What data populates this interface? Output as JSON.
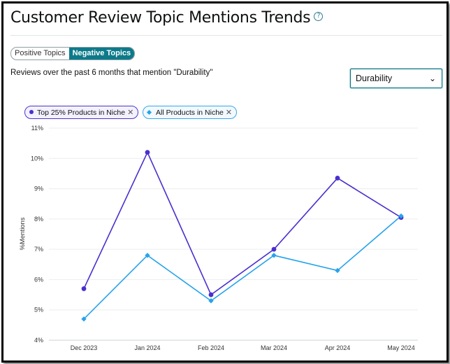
{
  "header": {
    "title": "Customer Review Topic Mentions Trends",
    "help_icon": "?"
  },
  "toggle": {
    "options": [
      "Positive Topics",
      "Negative Topics"
    ],
    "selected": "Negative Topics"
  },
  "subtitle": "Reviews over the past 6 months that mention \"Durability\"",
  "topic_select": {
    "value": "Durability",
    "chevron": "⌄"
  },
  "legend": [
    {
      "label": "Top 25% Products in Niche",
      "color": "#4a2fd0"
    },
    {
      "label": "All Products in Niche",
      "color": "#27a3ec"
    }
  ],
  "chart_data": {
    "type": "line",
    "categories": [
      "Dec 2023",
      "Jan 2024",
      "Feb 2024",
      "Mar 2024",
      "Apr 2024",
      "May 2024"
    ],
    "ylabel": "%Mentions",
    "ylim": [
      4,
      11
    ],
    "yticks": [
      "4%",
      "5%",
      "6%",
      "7%",
      "8%",
      "9%",
      "10%",
      "11%"
    ],
    "grid": true,
    "series": [
      {
        "name": "Top 25% Products in Niche",
        "color": "#4a2fd0",
        "marker": "circle",
        "values": [
          5.7,
          10.2,
          5.5,
          7.0,
          9.35,
          8.05
        ]
      },
      {
        "name": "All Products in Niche",
        "color": "#27a3ec",
        "marker": "diamond",
        "values": [
          4.7,
          6.8,
          5.3,
          6.8,
          6.3,
          8.1
        ]
      }
    ]
  }
}
